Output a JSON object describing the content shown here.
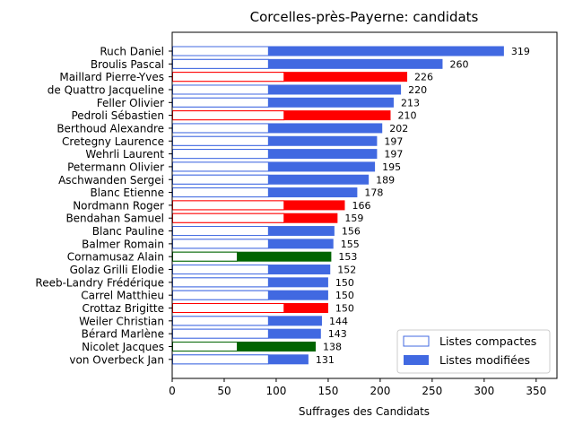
{
  "chart_data": {
    "type": "bar",
    "orientation": "horizontal",
    "title": "Corcelles-près-Payerne: candidats",
    "xlabel": "Suffrages des Candidats",
    "ylabel": "",
    "xlim": [
      0,
      370
    ],
    "xticks": [
      "0",
      "50",
      "100",
      "150",
      "200",
      "250",
      "300",
      "350"
    ],
    "grid": false,
    "legend": {
      "placement": "lower-right",
      "entries": [
        {
          "label": "Listes compactes",
          "style": "outline"
        },
        {
          "label": "Listes modifiées",
          "style": "filled"
        }
      ]
    },
    "colors": {
      "blue": "#4169e1",
      "red": "#ff0000",
      "green": "#006400"
    },
    "candidates": [
      {
        "name": "Ruch Daniel",
        "compact": 93,
        "total": 319,
        "label": "319",
        "color": "blue"
      },
      {
        "name": "Broulis Pascal",
        "compact": 93,
        "total": 260,
        "label": "260",
        "color": "blue"
      },
      {
        "name": "Maillard Pierre-Yves",
        "compact": 108,
        "total": 226,
        "label": "226",
        "color": "red"
      },
      {
        "name": "de Quattro Jacqueline",
        "compact": 93,
        "total": 220,
        "label": "220",
        "color": "blue"
      },
      {
        "name": "Feller Olivier",
        "compact": 93,
        "total": 213,
        "label": "213",
        "color": "blue"
      },
      {
        "name": "Pedroli Sébastien",
        "compact": 108,
        "total": 210,
        "label": "210",
        "color": "red"
      },
      {
        "name": "Berthoud Alexandre",
        "compact": 93,
        "total": 202,
        "label": "202",
        "color": "blue"
      },
      {
        "name": "Cretegny Laurence",
        "compact": 93,
        "total": 197,
        "label": "197",
        "color": "blue"
      },
      {
        "name": "Wehrli Laurent",
        "compact": 93,
        "total": 197,
        "label": "197",
        "color": "blue"
      },
      {
        "name": "Petermann Olivier",
        "compact": 93,
        "total": 195,
        "label": "195",
        "color": "blue"
      },
      {
        "name": "Aschwanden Sergei",
        "compact": 93,
        "total": 189,
        "label": "189",
        "color": "blue"
      },
      {
        "name": "Blanc Etienne",
        "compact": 93,
        "total": 178,
        "label": "178",
        "color": "blue"
      },
      {
        "name": "Nordmann Roger",
        "compact": 108,
        "total": 166,
        "label": "166",
        "color": "red"
      },
      {
        "name": "Bendahan Samuel",
        "compact": 108,
        "total": 159,
        "label": "159",
        "color": "red"
      },
      {
        "name": "Blanc Pauline",
        "compact": 93,
        "total": 156,
        "label": "156",
        "color": "blue"
      },
      {
        "name": "Balmer Romain",
        "compact": 93,
        "total": 155,
        "label": "155",
        "color": "blue"
      },
      {
        "name": "Cornamusaz Alain",
        "compact": 63,
        "total": 153,
        "label": "153",
        "color": "green"
      },
      {
        "name": "Golaz Grilli Elodie",
        "compact": 93,
        "total": 152,
        "label": "152",
        "color": "blue"
      },
      {
        "name": "Reeb-Landry Frédérique",
        "compact": 93,
        "total": 150,
        "label": "150",
        "color": "blue"
      },
      {
        "name": "Carrel Matthieu",
        "compact": 93,
        "total": 150,
        "label": "150",
        "color": "blue"
      },
      {
        "name": "Crottaz Brigitte",
        "compact": 108,
        "total": 150,
        "label": "150",
        "color": "red"
      },
      {
        "name": "Weiler Christian",
        "compact": 93,
        "total": 144,
        "label": "144",
        "color": "blue"
      },
      {
        "name": "Bérard Marlène",
        "compact": 93,
        "total": 143,
        "label": "143",
        "color": "blue"
      },
      {
        "name": "Nicolet Jacques",
        "compact": 63,
        "total": 138,
        "label": "138",
        "color": "green"
      },
      {
        "name": "von Overbeck Jan",
        "compact": 93,
        "total": 131,
        "label": "131",
        "color": "blue"
      }
    ]
  }
}
